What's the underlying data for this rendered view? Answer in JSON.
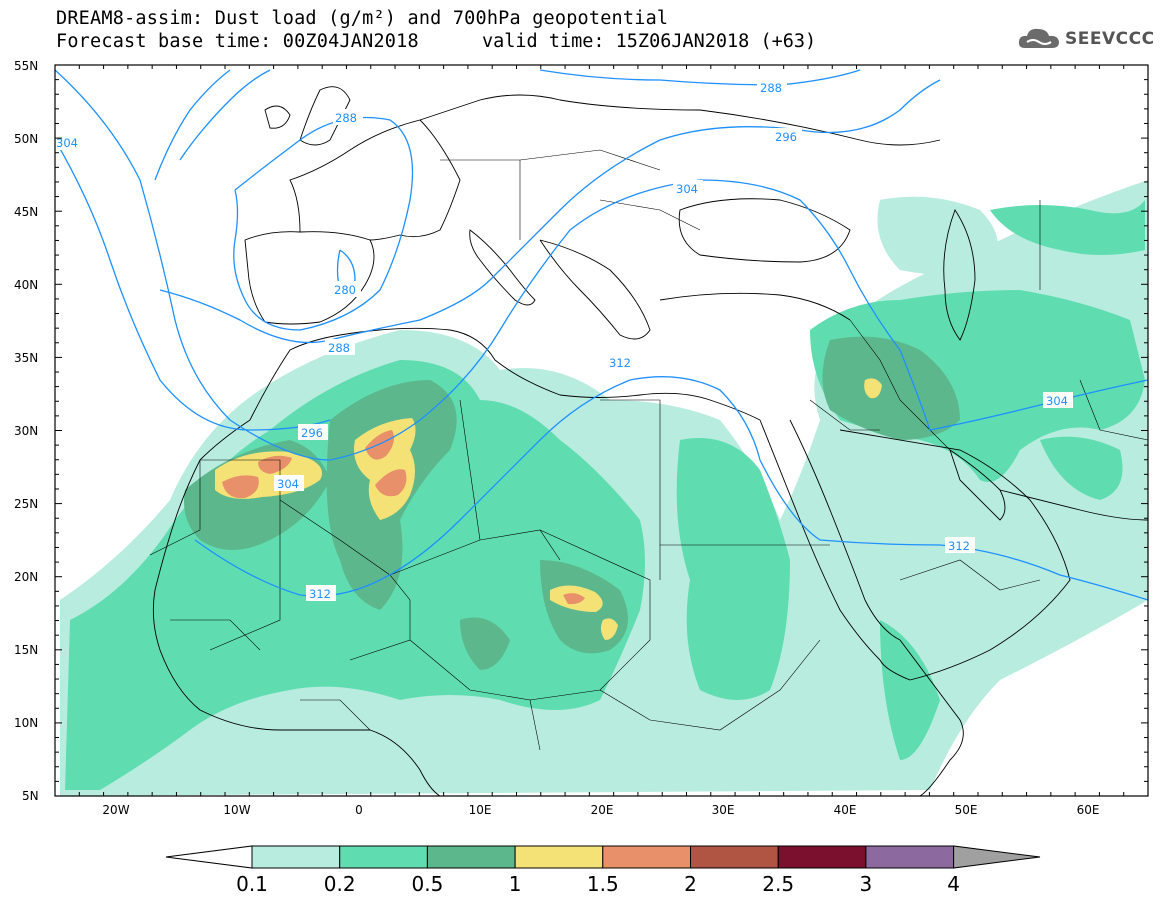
{
  "title": {
    "line1": "DREAM8-assim: Dust load (g/m²) and 700hPa geopotential",
    "line2_left": "Forecast base time: 00Z04JAN2018",
    "line2_right": "valid time: 15Z06JAN2018 (+63)"
  },
  "logo": {
    "text": "SEEVCCC",
    "icon": "cloud-icon"
  },
  "map": {
    "lon_range": [
      -25,
      65
    ],
    "lat_range": [
      5,
      55
    ],
    "lat_labels": [
      "55N",
      "50N",
      "45N",
      "40N",
      "35N",
      "30N",
      "25N",
      "20N",
      "15N",
      "10N",
      "5N"
    ],
    "lon_labels": [
      "20W",
      "10W",
      "0",
      "10E",
      "20E",
      "30E",
      "40E",
      "50E",
      "60E"
    ],
    "contour_labels": [
      "288",
      "304",
      "288",
      "296",
      "304",
      "280",
      "288",
      "312",
      "296",
      "304",
      "312",
      "304",
      "312"
    ],
    "contour_color": "#1e90ff"
  },
  "colorbar": {
    "labels": [
      "0.1",
      "0.2",
      "0.5",
      "1",
      "1.5",
      "2",
      "2.5",
      "3",
      "4"
    ],
    "colors": [
      "#ffffff",
      "#b8ecdf",
      "#5fddb0",
      "#5cb88c",
      "#f5e277",
      "#e8906a",
      "#b05543",
      "#7a0f2e",
      "#8c6aa0",
      "#a0a0a0"
    ]
  }
}
